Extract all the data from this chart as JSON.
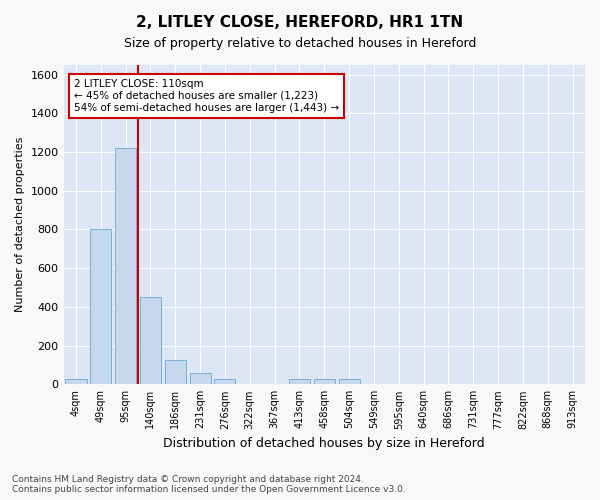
{
  "title1": "2, LITLEY CLOSE, HEREFORD, HR1 1TN",
  "title2": "Size of property relative to detached houses in Hereford",
  "xlabel": "Distribution of detached houses by size in Hereford",
  "ylabel": "Number of detached properties",
  "categories": [
    "4sqm",
    "49sqm",
    "95sqm",
    "140sqm",
    "186sqm",
    "231sqm",
    "276sqm",
    "322sqm",
    "367sqm",
    "413sqm",
    "458sqm",
    "504sqm",
    "549sqm",
    "595sqm",
    "640sqm",
    "686sqm",
    "731sqm",
    "777sqm",
    "822sqm",
    "868sqm",
    "913sqm"
  ],
  "values": [
    25,
    800,
    1220,
    450,
    125,
    60,
    25,
    0,
    0,
    25,
    25,
    25,
    0,
    0,
    0,
    0,
    0,
    0,
    0,
    0,
    0
  ],
  "bar_color": "#c5d8ee",
  "bar_edge_color": "#7aafd4",
  "background_color": "#dce6f5",
  "red_line_x": 2.5,
  "annotation_line1": "2 LITLEY CLOSE: 110sqm",
  "annotation_line2": "← 45% of detached houses are smaller (1,223)",
  "annotation_line3": "54% of semi-detached houses are larger (1,443) →",
  "annotation_box_facecolor": "#ffffff",
  "annotation_box_edgecolor": "#cc0000",
  "ylim": [
    0,
    1650
  ],
  "yticks": [
    0,
    200,
    400,
    600,
    800,
    1000,
    1200,
    1400,
    1600
  ],
  "title1_fontsize": 11,
  "title2_fontsize": 9,
  "xlabel_fontsize": 9,
  "ylabel_fontsize": 8,
  "tick_fontsize": 7,
  "footer1": "Contains HM Land Registry data © Crown copyright and database right 2024.",
  "footer2": "Contains public sector information licensed under the Open Government Licence v3.0."
}
